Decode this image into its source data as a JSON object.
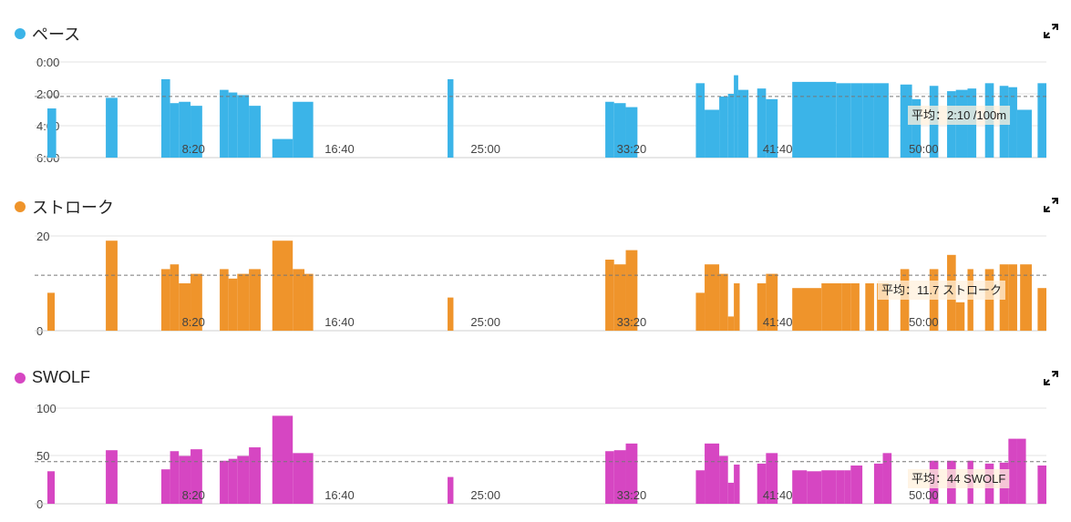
{
  "chart_data": [
    {
      "type": "bar",
      "title": "ペース",
      "color": "#3bb4e8",
      "y_ticks": [
        "0:00",
        "2:00",
        "4:00",
        "6:00"
      ],
      "ylim": [
        0,
        360
      ],
      "inverted": true,
      "x_ticks": [
        "8:20",
        "16:40",
        "25:00",
        "33:20",
        "41:40",
        "50:00"
      ],
      "x_tick_values": [
        500,
        1000,
        1500,
        2000,
        2500,
        3000
      ],
      "xlim": [
        0,
        3300
      ],
      "avg_value": 130,
      "avg_label": "平均：2:10 /100m",
      "bars": [
        [
          0,
          30,
          175
        ],
        [
          200,
          240,
          135
        ],
        [
          390,
          420,
          65
        ],
        [
          420,
          450,
          155
        ],
        [
          450,
          490,
          150
        ],
        [
          490,
          530,
          165
        ],
        [
          590,
          620,
          105
        ],
        [
          620,
          650,
          115
        ],
        [
          650,
          690,
          125
        ],
        [
          690,
          730,
          165
        ],
        [
          770,
          840,
          290
        ],
        [
          840,
          910,
          150
        ],
        [
          1370,
          1390,
          65
        ],
        [
          1910,
          1940,
          150
        ],
        [
          1940,
          1980,
          155
        ],
        [
          1980,
          2020,
          170
        ],
        [
          2220,
          2250,
          80
        ],
        [
          2250,
          2300,
          180
        ],
        [
          2300,
          2330,
          130
        ],
        [
          2330,
          2350,
          120
        ],
        [
          2350,
          2365,
          50
        ],
        [
          2365,
          2400,
          105
        ],
        [
          2430,
          2460,
          100
        ],
        [
          2460,
          2500,
          140
        ],
        [
          2550,
          2700,
          75
        ],
        [
          2700,
          2750,
          80
        ],
        [
          2750,
          2790,
          80
        ],
        [
          2790,
          2830,
          80
        ],
        [
          2830,
          2880,
          80
        ],
        [
          2920,
          2960,
          85
        ],
        [
          2960,
          2990,
          140
        ],
        [
          3020,
          3050,
          90
        ],
        [
          3080,
          3110,
          110
        ],
        [
          3110,
          3150,
          105
        ],
        [
          3150,
          3180,
          100
        ],
        [
          3210,
          3240,
          80
        ],
        [
          3260,
          3290,
          90
        ],
        [
          3290,
          3320,
          95
        ],
        [
          3320,
          3370,
          180
        ],
        [
          3390,
          3420,
          80
        ]
      ]
    },
    {
      "type": "bar",
      "title": "ストローク",
      "color": "#ef942b",
      "y_ticks": [
        "20",
        "0"
      ],
      "ylim": [
        0,
        20
      ],
      "inverted": false,
      "x_ticks": [
        "8:20",
        "16:40",
        "25:00",
        "33:20",
        "41:40",
        "50:00"
      ],
      "x_tick_values": [
        500,
        1000,
        1500,
        2000,
        2500,
        3000
      ],
      "xlim": [
        0,
        3300
      ],
      "avg_value": 11.7,
      "avg_label": "平均：11.7 ストローク",
      "bars": [
        [
          0,
          25,
          8
        ],
        [
          200,
          240,
          19
        ],
        [
          390,
          420,
          13
        ],
        [
          420,
          450,
          14
        ],
        [
          450,
          490,
          10
        ],
        [
          490,
          530,
          12
        ],
        [
          590,
          620,
          13
        ],
        [
          620,
          650,
          11
        ],
        [
          650,
          690,
          12
        ],
        [
          690,
          730,
          13
        ],
        [
          770,
          840,
          19
        ],
        [
          840,
          880,
          13
        ],
        [
          880,
          910,
          12
        ],
        [
          1370,
          1390,
          7
        ],
        [
          1910,
          1940,
          15
        ],
        [
          1940,
          1980,
          14
        ],
        [
          1980,
          2020,
          17
        ],
        [
          2220,
          2250,
          8
        ],
        [
          2250,
          2300,
          14
        ],
        [
          2300,
          2330,
          12
        ],
        [
          2330,
          2350,
          3
        ],
        [
          2350,
          2370,
          10
        ],
        [
          2430,
          2460,
          10
        ],
        [
          2460,
          2500,
          12
        ],
        [
          2550,
          2650,
          9
        ],
        [
          2650,
          2720,
          10
        ],
        [
          2720,
          2750,
          10
        ],
        [
          2750,
          2780,
          10
        ],
        [
          2800,
          2830,
          10
        ],
        [
          2840,
          2880,
          10
        ],
        [
          2920,
          2950,
          13
        ],
        [
          3020,
          3050,
          13
        ],
        [
          3080,
          3110,
          16
        ],
        [
          3110,
          3140,
          6
        ],
        [
          3150,
          3170,
          13
        ],
        [
          3210,
          3240,
          13
        ],
        [
          3260,
          3290,
          14
        ],
        [
          3290,
          3320,
          14
        ],
        [
          3330,
          3370,
          14
        ],
        [
          3390,
          3420,
          9
        ]
      ]
    },
    {
      "type": "bar",
      "title": "SWOLF",
      "color": "#d646c2",
      "y_ticks": [
        "100",
        "50",
        "0"
      ],
      "ylim": [
        0,
        100
      ],
      "inverted": false,
      "x_ticks": [
        "8:20",
        "16:40",
        "25:00",
        "33:20",
        "41:40",
        "50:00"
      ],
      "x_tick_values": [
        500,
        1000,
        1500,
        2000,
        2500,
        3000
      ],
      "xlim": [
        0,
        3300
      ],
      "avg_value": 44,
      "avg_label": "平均：44 SWOLF",
      "bars": [
        [
          0,
          25,
          34
        ],
        [
          200,
          240,
          56
        ],
        [
          390,
          420,
          36
        ],
        [
          420,
          450,
          55
        ],
        [
          450,
          490,
          50
        ],
        [
          490,
          530,
          57
        ],
        [
          590,
          620,
          45
        ],
        [
          620,
          650,
          47
        ],
        [
          650,
          690,
          50
        ],
        [
          690,
          730,
          59
        ],
        [
          770,
          840,
          92
        ],
        [
          840,
          910,
          53
        ],
        [
          1370,
          1390,
          28
        ],
        [
          1910,
          1940,
          55
        ],
        [
          1940,
          1980,
          56
        ],
        [
          1980,
          2020,
          63
        ],
        [
          2220,
          2250,
          35
        ],
        [
          2250,
          2300,
          63
        ],
        [
          2300,
          2330,
          50
        ],
        [
          2330,
          2350,
          22
        ],
        [
          2350,
          2370,
          41
        ],
        [
          2430,
          2460,
          42
        ],
        [
          2460,
          2500,
          53
        ],
        [
          2550,
          2600,
          35
        ],
        [
          2600,
          2650,
          34
        ],
        [
          2650,
          2700,
          35
        ],
        [
          2700,
          2730,
          35
        ],
        [
          2730,
          2750,
          35
        ],
        [
          2750,
          2790,
          40
        ],
        [
          2830,
          2860,
          42
        ],
        [
          2860,
          2890,
          53
        ],
        [
          3020,
          3050,
          45
        ],
        [
          3080,
          3110,
          45
        ],
        [
          3150,
          3170,
          45
        ],
        [
          3210,
          3240,
          42
        ],
        [
          3260,
          3290,
          43
        ],
        [
          3290,
          3320,
          68
        ],
        [
          3320,
          3350,
          68
        ],
        [
          3390,
          3420,
          40
        ]
      ]
    }
  ]
}
